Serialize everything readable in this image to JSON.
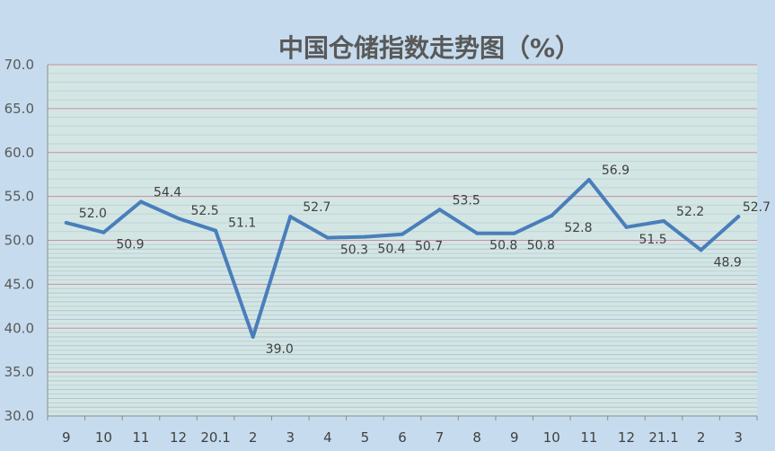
{
  "chart_data": {
    "type": "line",
    "title": "中国仓储指数走势图（%）",
    "categories": [
      "9",
      "10",
      "11",
      "12",
      "20.1",
      "2",
      "3",
      "4",
      "5",
      "6",
      "7",
      "8",
      "9",
      "10",
      "11",
      "12",
      "21.1",
      "2",
      "3"
    ],
    "series": [
      {
        "values": [
          52.0,
          50.9,
          54.4,
          52.5,
          51.1,
          39.0,
          52.7,
          50.3,
          50.4,
          50.7,
          53.5,
          50.8,
          50.8,
          52.8,
          56.9,
          51.5,
          52.2,
          48.9,
          52.7
        ],
        "labels": [
          "52.0",
          "50.9",
          "54.4",
          "52.5",
          "51.1",
          "39.0",
          "52.7",
          "50.3",
          "50.4",
          "50.7",
          "53.5",
          "50.8",
          "50.8",
          "52.8",
          "56.9",
          "51.5",
          "52.2",
          "48.9",
          "52.7"
        ]
      }
    ],
    "ylim": [
      30.0,
      70.0
    ],
    "yticks": [
      "30.0",
      "35.0",
      "40.0",
      "45.0",
      "50.0",
      "55.0",
      "60.0",
      "65.0",
      "70.0"
    ],
    "xlabel": "",
    "ylabel": "",
    "grid": true,
    "colors": {
      "line": "#4a7ebb",
      "major_grid": "#c98ba6",
      "minor_grid": "#a9bfd3",
      "plot_bg": "#d3e6e3",
      "page_bg": "#c6dcee"
    }
  }
}
